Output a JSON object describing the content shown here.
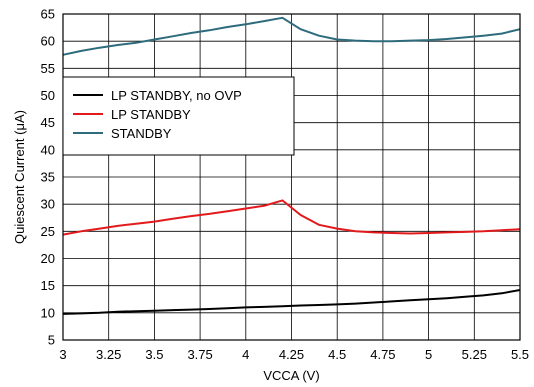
{
  "chart_data": {
    "type": "line",
    "title": "",
    "xlabel": "VCCA (V)",
    "ylabel": "Quiescent Current (μA)",
    "xlim": [
      3,
      5.5
    ],
    "ylim": [
      5,
      65
    ],
    "x_ticks": [
      "3",
      "3.25",
      "3.5",
      "3.75",
      "4",
      "4.25",
      "4.5",
      "4.75",
      "5",
      "5.25",
      "5.5"
    ],
    "y_ticks": [
      "5",
      "10",
      "15",
      "20",
      "25",
      "30",
      "35",
      "40",
      "45",
      "50",
      "55",
      "60",
      "65"
    ],
    "grid": true,
    "legend_position": "center-left",
    "series": [
      {
        "name": "LP STANDBY, no OVP",
        "color": "#000000",
        "x": [
          3.0,
          3.1,
          3.2,
          3.3,
          3.4,
          3.5,
          3.6,
          3.7,
          3.8,
          3.9,
          4.0,
          4.1,
          4.2,
          4.3,
          4.4,
          4.5,
          4.6,
          4.7,
          4.8,
          4.9,
          5.0,
          5.1,
          5.2,
          5.3,
          5.4,
          5.5
        ],
        "y": [
          9.8,
          9.9,
          10.0,
          10.2,
          10.3,
          10.4,
          10.5,
          10.6,
          10.7,
          10.85,
          11.0,
          11.1,
          11.2,
          11.35,
          11.45,
          11.55,
          11.7,
          11.9,
          12.1,
          12.3,
          12.5,
          12.7,
          12.95,
          13.2,
          13.6,
          14.2
        ]
      },
      {
        "name": "LP STANDBY",
        "color": "#e31a1c",
        "x": [
          3.0,
          3.1,
          3.2,
          3.3,
          3.4,
          3.5,
          3.6,
          3.7,
          3.8,
          3.9,
          4.0,
          4.1,
          4.2,
          4.3,
          4.4,
          4.5,
          4.6,
          4.7,
          4.8,
          4.9,
          5.0,
          5.1,
          5.2,
          5.3,
          5.4,
          5.5
        ],
        "y": [
          24.4,
          25.0,
          25.5,
          26.0,
          26.4,
          26.8,
          27.3,
          27.8,
          28.2,
          28.7,
          29.2,
          29.7,
          30.7,
          28.0,
          26.2,
          25.5,
          25.0,
          24.8,
          24.7,
          24.6,
          24.7,
          24.8,
          24.9,
          25.0,
          25.2,
          25.4
        ]
      },
      {
        "name": "STANDBY",
        "color": "#2e6b7d",
        "x": [
          3.0,
          3.1,
          3.2,
          3.3,
          3.4,
          3.5,
          3.6,
          3.7,
          3.8,
          3.9,
          4.0,
          4.1,
          4.2,
          4.3,
          4.4,
          4.5,
          4.6,
          4.7,
          4.8,
          4.9,
          5.0,
          5.1,
          5.2,
          5.3,
          5.4,
          5.5
        ],
        "y": [
          57.5,
          58.2,
          58.8,
          59.3,
          59.7,
          60.3,
          60.9,
          61.5,
          62.0,
          62.6,
          63.1,
          63.7,
          64.3,
          62.2,
          61.0,
          60.3,
          60.1,
          60.0,
          60.0,
          60.1,
          60.2,
          60.4,
          60.7,
          61.0,
          61.4,
          62.2
        ]
      }
    ]
  }
}
